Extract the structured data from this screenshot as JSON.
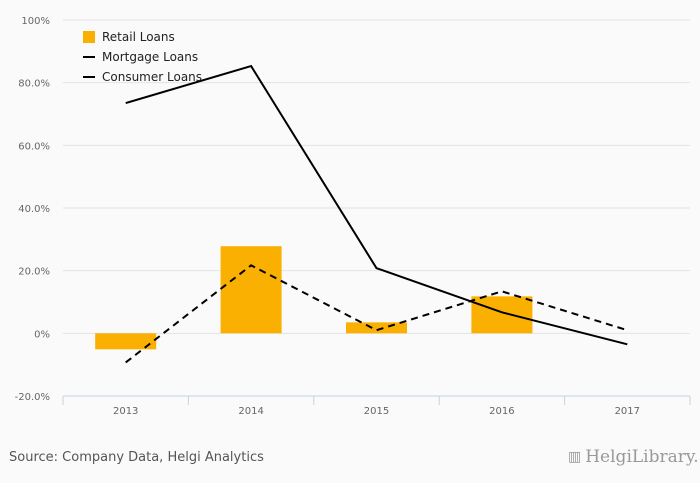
{
  "chart_data": {
    "type": "bar",
    "categories": [
      "2013",
      "2014",
      "2015",
      "2016",
      "2017"
    ],
    "ylim": [
      -20,
      100
    ],
    "yticks": [
      -20,
      0,
      20,
      40,
      60,
      80,
      100
    ],
    "ytick_labels": [
      "-20.0%",
      "0%",
      "20.0%",
      "40.0%",
      "60.0%",
      "80.0%",
      "100%"
    ],
    "grid": true,
    "legend_placement": "top-left",
    "series": [
      {
        "name": "Retail Loans",
        "type": "bar",
        "color": "#f9b000",
        "values": [
          -5.1,
          27.8,
          3.5,
          11.8,
          null
        ]
      },
      {
        "name": "Mortgage Loans",
        "type": "line",
        "style": "solid",
        "color": "#000000",
        "values": [
          73.5,
          85.3,
          20.8,
          6.7,
          -3.5
        ]
      },
      {
        "name": "Consumer Loans",
        "type": "line",
        "style": "dashed",
        "color": "#000000",
        "values": [
          -9.3,
          21.7,
          1.0,
          13.4,
          1.0
        ]
      }
    ]
  },
  "footer": {
    "source": "Source: Company Data, Helgi Analytics",
    "logo": "HelgiLibrary."
  }
}
